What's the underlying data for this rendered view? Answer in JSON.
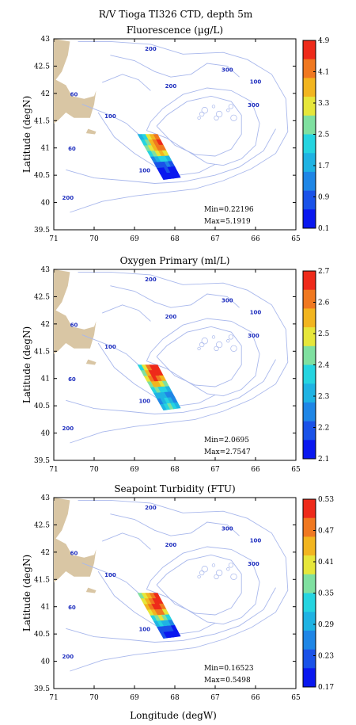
{
  "title": "R/V Tioga TI326 CTD, depth 5m",
  "xlabel": "Longitude (degW)",
  "ylabel": "Latitude (degN)",
  "x_ticks": [
    "71",
    "70",
    "69",
    "68",
    "67",
    "66",
    "65"
  ],
  "y_ticks": [
    "43",
    "42.5",
    "42",
    "41.5",
    "41",
    "40.5",
    "40",
    "39.5"
  ],
  "depth_labels": [
    "200",
    "60",
    "200",
    "300",
    "100",
    "300",
    "100",
    "60",
    "100",
    "200"
  ],
  "colors": {
    "land": "#d9c6a4",
    "contour": "#a9b8ec",
    "contour_label": "#1f2fbf",
    "colorscale": [
      "#0a18ef",
      "#1a52e8",
      "#1f86e6",
      "#1fb3e3",
      "#25d4e0",
      "#7fe0a0",
      "#e6e63a",
      "#f2b51f",
      "#f07820",
      "#ee2a1a"
    ]
  },
  "panels": [
    {
      "title": "Fluorescence (µg/L)",
      "min_text": "Min=0.22196",
      "max_text": "Max=5.1919",
      "colorbar_ticks": [
        "4.9",
        "4.1",
        "3.3",
        "2.5",
        "1.7",
        "0.9",
        "0.1"
      ]
    },
    {
      "title": "Oxygen Primary (ml/L)",
      "min_text": "Min=2.0695",
      "max_text": "Max=2.7547",
      "colorbar_ticks": [
        "2.7",
        "2.6",
        "2.5",
        "2.4",
        "2.3",
        "2.2",
        "2.1"
      ]
    },
    {
      "title": "Seapoint Turbidity (FTU)",
      "min_text": "Min=0.16523",
      "max_text": "Max=0.5498",
      "colorbar_ticks": [
        "0.53",
        "0.47",
        "0.41",
        "0.35",
        "0.29",
        "0.23",
        "0.17"
      ]
    }
  ]
}
